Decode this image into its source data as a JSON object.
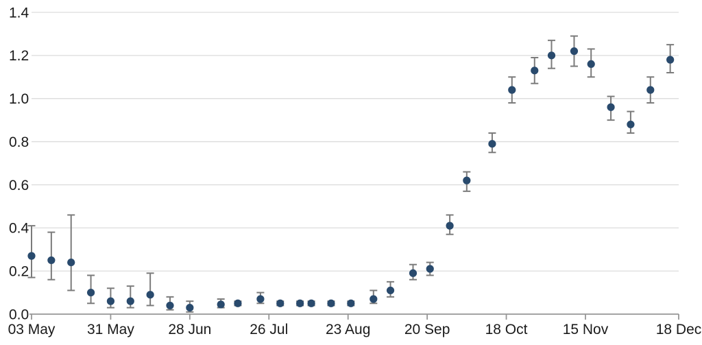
{
  "chart_data": {
    "type": "scatter",
    "subtype": "point-estimates-with-error-bars",
    "title": "",
    "legend": "none",
    "grid": "horizontal",
    "x_axis": {
      "label": "",
      "tick_labels": [
        "03 May",
        "31 May",
        "28 Jun",
        "26 Jul",
        "23 Aug",
        "20 Sep",
        "18 Oct",
        "15 Nov",
        "18 Dec"
      ],
      "tick_days": [
        0,
        28,
        56,
        84,
        112,
        140,
        168,
        196,
        229
      ],
      "start": "03 May",
      "end": "18 Dec",
      "span_days": 229
    },
    "y_axis": {
      "label": "",
      "tick_labels": [
        "0.0",
        "0.2",
        "0.4",
        "0.6",
        "0.8",
        "1.0",
        "1.2",
        "1.4"
      ],
      "tick_values": [
        0,
        0.2,
        0.4,
        0.6,
        0.8,
        1.0,
        1.2,
        1.4
      ],
      "range": [
        0,
        1.4
      ]
    },
    "series": [
      {
        "name": "estimate",
        "points": [
          {
            "date": "03 May",
            "day": 0,
            "value": 0.27,
            "lo": 0.17,
            "hi": 0.41
          },
          {
            "date": "10 May",
            "day": 7,
            "value": 0.25,
            "lo": 0.16,
            "hi": 0.38
          },
          {
            "date": "17 May",
            "day": 14,
            "value": 0.24,
            "lo": 0.11,
            "hi": 0.46
          },
          {
            "date": "24 May",
            "day": 21,
            "value": 0.1,
            "lo": 0.05,
            "hi": 0.18
          },
          {
            "date": "31 May",
            "day": 28,
            "value": 0.06,
            "lo": 0.03,
            "hi": 0.12
          },
          {
            "date": "07 Jun",
            "day": 35,
            "value": 0.06,
            "lo": 0.03,
            "hi": 0.13
          },
          {
            "date": "14 Jun",
            "day": 42,
            "value": 0.09,
            "lo": 0.04,
            "hi": 0.19
          },
          {
            "date": "21 Jun",
            "day": 49,
            "value": 0.04,
            "lo": 0.02,
            "hi": 0.08
          },
          {
            "date": "28 Jun",
            "day": 56,
            "value": 0.03,
            "lo": 0.01,
            "hi": 0.06
          },
          {
            "date": "09 Jul",
            "day": 67,
            "value": 0.045,
            "lo": 0.03,
            "hi": 0.07
          },
          {
            "date": "15 Jul",
            "day": 73,
            "value": 0.05,
            "lo": 0.04,
            "hi": 0.06
          },
          {
            "date": "23 Jul",
            "day": 81,
            "value": 0.07,
            "lo": 0.05,
            "hi": 0.1
          },
          {
            "date": "29 Jul",
            "day": 88,
            "value": 0.05,
            "lo": 0.04,
            "hi": 0.06
          },
          {
            "date": "05 Aug",
            "day": 95,
            "value": 0.05,
            "lo": 0.04,
            "hi": 0.06
          },
          {
            "date": "09 Aug",
            "day": 99,
            "value": 0.05,
            "lo": 0.04,
            "hi": 0.06
          },
          {
            "date": "16 Aug",
            "day": 106,
            "value": 0.05,
            "lo": 0.04,
            "hi": 0.06
          },
          {
            "date": "24 Aug",
            "day": 113,
            "value": 0.05,
            "lo": 0.04,
            "hi": 0.06
          },
          {
            "date": "01 Sep",
            "day": 121,
            "value": 0.07,
            "lo": 0.05,
            "hi": 0.11
          },
          {
            "date": "07 Sep",
            "day": 127,
            "value": 0.11,
            "lo": 0.08,
            "hi": 0.15
          },
          {
            "date": "15 Sep",
            "day": 135,
            "value": 0.19,
            "lo": 0.16,
            "hi": 0.23
          },
          {
            "date": "21 Sep",
            "day": 141,
            "value": 0.21,
            "lo": 0.18,
            "hi": 0.24
          },
          {
            "date": "28 Sep",
            "day": 148,
            "value": 0.41,
            "lo": 0.37,
            "hi": 0.46
          },
          {
            "date": "04 Oct",
            "day": 154,
            "value": 0.62,
            "lo": 0.57,
            "hi": 0.66
          },
          {
            "date": "13 Oct",
            "day": 163,
            "value": 0.79,
            "lo": 0.75,
            "hi": 0.84
          },
          {
            "date": "19 Oct",
            "day": 170,
            "value": 1.04,
            "lo": 0.98,
            "hi": 1.1
          },
          {
            "date": "28 Oct",
            "day": 178,
            "value": 1.13,
            "lo": 1.07,
            "hi": 1.19
          },
          {
            "date": "03 Nov",
            "day": 184,
            "value": 1.2,
            "lo": 1.14,
            "hi": 1.27
          },
          {
            "date": "11 Nov",
            "day": 192,
            "value": 1.22,
            "lo": 1.15,
            "hi": 1.29
          },
          {
            "date": "17 Nov",
            "day": 198,
            "value": 1.16,
            "lo": 1.1,
            "hi": 1.23
          },
          {
            "date": "24 Nov",
            "day": 205,
            "value": 0.96,
            "lo": 0.9,
            "hi": 1.01
          },
          {
            "date": "01 Dec",
            "day": 212,
            "value": 0.88,
            "lo": 0.84,
            "hi": 0.94
          },
          {
            "date": "08 Dec",
            "day": 219,
            "value": 1.04,
            "lo": 0.98,
            "hi": 1.1
          },
          {
            "date": "14 Dec",
            "day": 226,
            "value": 1.18,
            "lo": 1.12,
            "hi": 1.25
          }
        ]
      }
    ],
    "colors": {
      "point": "#294a6d",
      "error_bar": "#7b7b7b",
      "gridline": "#dcdcdc",
      "axis": "#969696",
      "text": "#1a1a1a",
      "background": "#ffffff"
    }
  }
}
